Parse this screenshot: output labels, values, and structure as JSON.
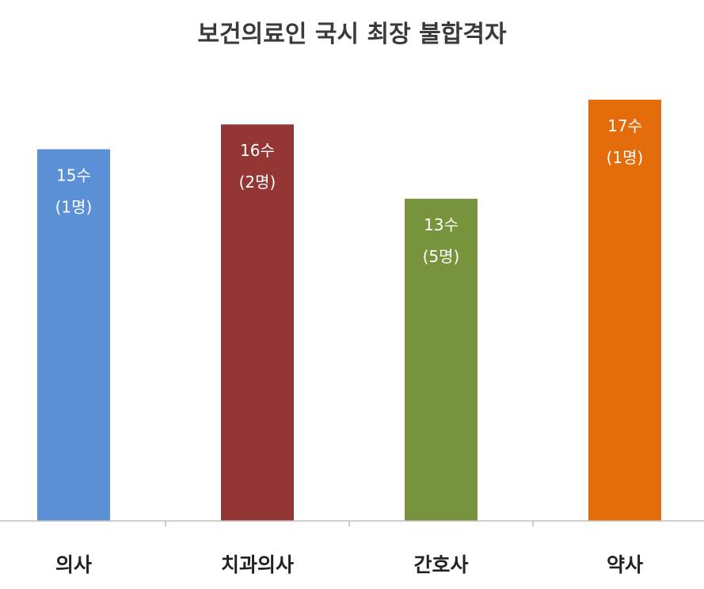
{
  "chart_data": {
    "type": "bar",
    "title": "보건의료인 국시 최장 불합격자",
    "xlabel": "",
    "ylabel": "",
    "ylim": [
      0,
      18
    ],
    "grid": false,
    "categories": [
      "의사",
      "치과의사",
      "간호사",
      "약사"
    ],
    "values": [
      15,
      16,
      13,
      17
    ],
    "value_labels": [
      "15수",
      "16수",
      "13수",
      "17수"
    ],
    "count_labels": [
      "(1명)",
      "(2명)",
      "(5명)",
      "(1명)"
    ],
    "colors": [
      "#5b8fd6",
      "#943634",
      "#77933c",
      "#e46c0a"
    ]
  }
}
